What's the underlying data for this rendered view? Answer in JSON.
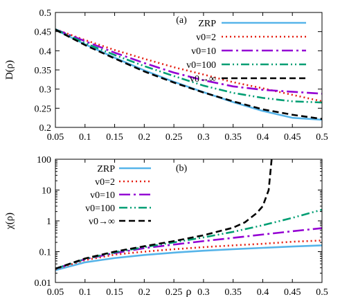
{
  "chart_data": [
    {
      "type": "line",
      "panel_label": "(a)",
      "ylabel": "D(ρ)",
      "xlabel": "",
      "xlim": [
        0.05,
        0.5
      ],
      "ylim": [
        0.2,
        0.5
      ],
      "yscale": "linear",
      "xticks": [
        "0.05",
        "0.1",
        "0.15",
        "0.2",
        "0.25",
        "0.3",
        "0.35",
        "0.4",
        "0.45",
        "0.5"
      ],
      "yticks": [
        "0.2",
        "0.25",
        "0.3",
        "0.35",
        "0.4",
        "0.45",
        "0.5"
      ],
      "legend_position": "top-right",
      "series": [
        {
          "name": "ZRP",
          "color": "#56b4e9",
          "dash": "solid",
          "x": [
            0.05,
            0.1,
            0.15,
            0.2,
            0.25,
            0.3,
            0.35,
            0.4,
            0.45,
            0.5
          ],
          "y": [
            0.455,
            0.417,
            0.382,
            0.349,
            0.319,
            0.292,
            0.266,
            0.243,
            0.225,
            0.22
          ]
        },
        {
          "name": "v0=2",
          "color": "#e51e10",
          "dash": "dot",
          "x": [
            0.05,
            0.1,
            0.15,
            0.2,
            0.25,
            0.3,
            0.35,
            0.4,
            0.45,
            0.5
          ],
          "y": [
            0.456,
            0.428,
            0.402,
            0.379,
            0.357,
            0.338,
            0.318,
            0.302,
            0.285,
            0.268
          ]
        },
        {
          "name": "v0=10",
          "color": "#9400d3",
          "dash": "dashdot-long",
          "x": [
            0.05,
            0.1,
            0.15,
            0.2,
            0.25,
            0.3,
            0.35,
            0.4,
            0.45,
            0.5
          ],
          "y": [
            0.456,
            0.425,
            0.395,
            0.368,
            0.343,
            0.323,
            0.307,
            0.298,
            0.293,
            0.288
          ]
        },
        {
          "name": "v0=100",
          "color": "#009e73",
          "dash": "dashdotdot",
          "x": [
            0.05,
            0.1,
            0.15,
            0.2,
            0.25,
            0.3,
            0.35,
            0.4,
            0.45,
            0.5
          ],
          "y": [
            0.456,
            0.42,
            0.389,
            0.36,
            0.334,
            0.309,
            0.29,
            0.277,
            0.268,
            0.265
          ]
        },
        {
          "name": "v0→∞",
          "color": "#000000",
          "dash": "dash",
          "x": [
            0.05,
            0.1,
            0.15,
            0.2,
            0.25,
            0.3,
            0.35,
            0.4,
            0.45,
            0.5
          ],
          "y": [
            0.455,
            0.415,
            0.38,
            0.346,
            0.317,
            0.291,
            0.268,
            0.247,
            0.233,
            0.222
          ]
        }
      ]
    },
    {
      "type": "line",
      "panel_label": "(b)",
      "ylabel": "χ(ρ)",
      "xlabel": "ρ",
      "xlim": [
        0.05,
        0.5
      ],
      "ylim": [
        0.01,
        100
      ],
      "yscale": "log",
      "xticks": [
        "0.05",
        "0.1",
        "0.15",
        "0.2",
        "0.25",
        "0.3",
        "0.35",
        "0.4",
        "0.45",
        "0.5"
      ],
      "yticks": [
        "0.01",
        "0.1",
        "1",
        "10",
        "100"
      ],
      "legend_position": "top-left",
      "series": [
        {
          "name": "ZRP",
          "color": "#56b4e9",
          "dash": "solid",
          "x": [
            0.05,
            0.1,
            0.15,
            0.2,
            0.25,
            0.3,
            0.35,
            0.4,
            0.45,
            0.5
          ],
          "y": [
            0.025,
            0.045,
            0.062,
            0.078,
            0.093,
            0.107,
            0.12,
            0.133,
            0.147,
            0.16
          ]
        },
        {
          "name": "v0=2",
          "color": "#e51e10",
          "dash": "dot",
          "x": [
            0.05,
            0.1,
            0.15,
            0.2,
            0.25,
            0.3,
            0.35,
            0.4,
            0.45,
            0.5
          ],
          "y": [
            0.027,
            0.053,
            0.08,
            0.1,
            0.12,
            0.14,
            0.16,
            0.18,
            0.21,
            0.23
          ]
        },
        {
          "name": "v0=10",
          "color": "#9400d3",
          "dash": "dashdot-long",
          "x": [
            0.05,
            0.1,
            0.15,
            0.2,
            0.25,
            0.3,
            0.35,
            0.4,
            0.45,
            0.5
          ],
          "y": [
            0.028,
            0.057,
            0.09,
            0.13,
            0.17,
            0.22,
            0.28,
            0.36,
            0.46,
            0.58
          ]
        },
        {
          "name": "v0=100",
          "color": "#009e73",
          "dash": "dashdotdot",
          "x": [
            0.05,
            0.1,
            0.15,
            0.2,
            0.25,
            0.3,
            0.35,
            0.4,
            0.45,
            0.5
          ],
          "y": [
            0.028,
            0.058,
            0.095,
            0.14,
            0.2,
            0.29,
            0.44,
            0.72,
            1.25,
            2.3
          ]
        },
        {
          "name": "v0→∞",
          "color": "#000000",
          "dash": "dash",
          "x": [
            0.05,
            0.1,
            0.15,
            0.2,
            0.25,
            0.3,
            0.35,
            0.37,
            0.39,
            0.4,
            0.41,
            0.415
          ],
          "y": [
            0.028,
            0.06,
            0.1,
            0.15,
            0.22,
            0.34,
            0.6,
            0.9,
            1.8,
            3.0,
            10.0,
            100.0
          ]
        }
      ]
    }
  ]
}
